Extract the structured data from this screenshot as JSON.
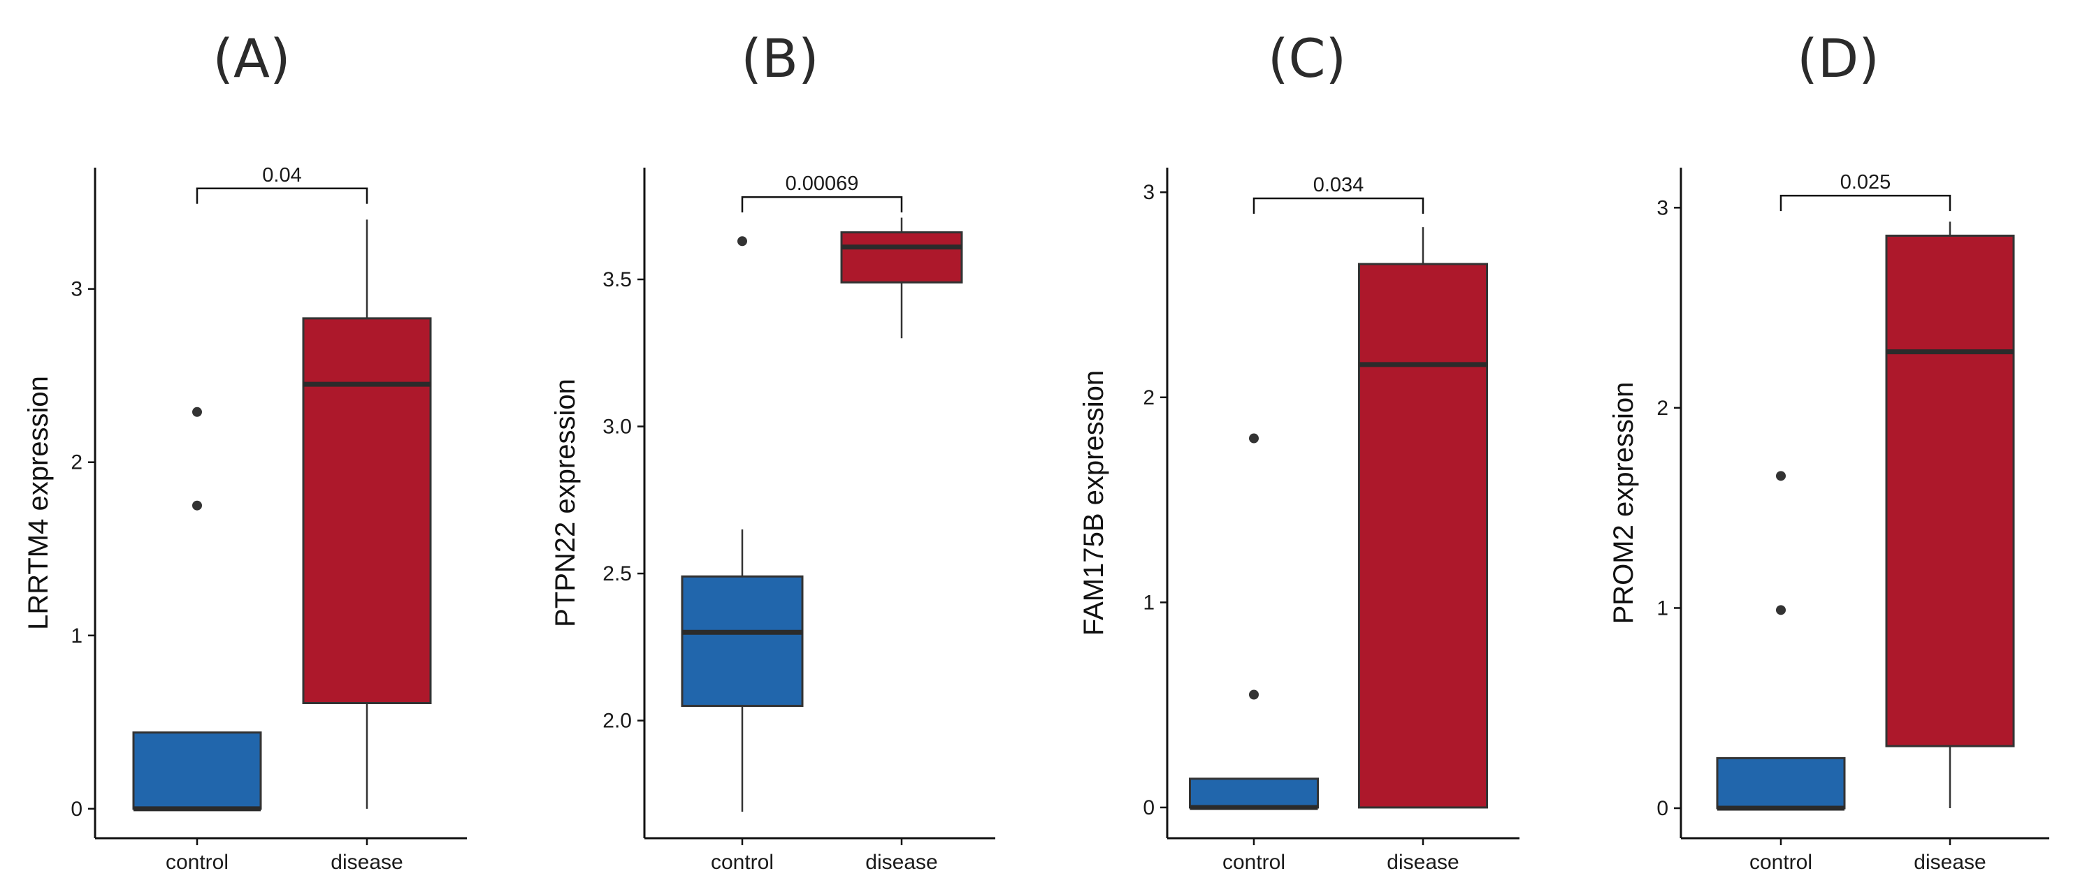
{
  "colors": {
    "control": "#2166ac",
    "disease": "#ad182b"
  },
  "chart_data": [
    {
      "type": "box",
      "panel": "(A)",
      "ylabel": "LRRTM4 expression",
      "categories": [
        "control",
        "disease"
      ],
      "ylim": [
        -0.17,
        3.7
      ],
      "yticks": [
        0,
        1,
        2,
        3
      ],
      "ytick_labels": [
        "0",
        "1",
        "2",
        "3"
      ],
      "boxes": [
        {
          "group": "control",
          "whisker_low": 0,
          "q1": 0,
          "median": 0,
          "q3": 0.44,
          "whisker_high": 0.44,
          "outliers": [
            1.75,
            2.29
          ]
        },
        {
          "group": "disease",
          "whisker_low": 0,
          "q1": 0.61,
          "median": 2.45,
          "q3": 2.83,
          "whisker_high": 3.4,
          "outliers": []
        }
      ],
      "comparison": {
        "label": "0.04",
        "y": 3.58
      }
    },
    {
      "type": "box",
      "panel": "(B)",
      "ylabel": "PTPN22 expression",
      "categories": [
        "control",
        "disease"
      ],
      "ylim": [
        1.6,
        3.88
      ],
      "yticks": [
        2.0,
        2.5,
        3.0,
        3.5
      ],
      "ytick_labels": [
        "2.0",
        "2.5",
        "3.0",
        "3.5"
      ],
      "boxes": [
        {
          "group": "control",
          "whisker_low": 1.69,
          "q1": 2.05,
          "median": 2.3,
          "q3": 2.49,
          "whisker_high": 2.65,
          "outliers": [
            3.63
          ]
        },
        {
          "group": "disease",
          "whisker_low": 3.3,
          "q1": 3.49,
          "median": 3.61,
          "q3": 3.66,
          "whisker_high": 3.71,
          "outliers": []
        }
      ],
      "comparison": {
        "label": "0.00069",
        "y": 3.78
      }
    },
    {
      "type": "box",
      "panel": "(C)",
      "ylabel": "FAM175B expression",
      "categories": [
        "control",
        "disease"
      ],
      "ylim": [
        -0.15,
        3.12
      ],
      "yticks": [
        0,
        1,
        2,
        3
      ],
      "ytick_labels": [
        "0",
        "1",
        "2",
        "3"
      ],
      "boxes": [
        {
          "group": "control",
          "whisker_low": 0,
          "q1": 0,
          "median": 0,
          "q3": 0.14,
          "whisker_high": 0.14,
          "outliers": [
            0.55,
            1.8
          ]
        },
        {
          "group": "disease",
          "whisker_low": 0,
          "q1": 0,
          "median": 2.16,
          "q3": 2.65,
          "whisker_high": 2.83,
          "outliers": []
        }
      ],
      "comparison": {
        "label": "0.034",
        "y": 2.97
      }
    },
    {
      "type": "box",
      "panel": "(D)",
      "ylabel": "PROM2 expression",
      "categories": [
        "control",
        "disease"
      ],
      "ylim": [
        -0.15,
        3.2
      ],
      "yticks": [
        0,
        1,
        2,
        3
      ],
      "ytick_labels": [
        "0",
        "1",
        "2",
        "3"
      ],
      "boxes": [
        {
          "group": "control",
          "whisker_low": 0,
          "q1": 0,
          "median": 0,
          "q3": 0.25,
          "whisker_high": 0.25,
          "outliers": [
            0.99,
            1.66
          ]
        },
        {
          "group": "disease",
          "whisker_low": 0,
          "q1": 0.31,
          "median": 2.28,
          "q3": 2.86,
          "whisker_high": 2.93,
          "outliers": []
        }
      ],
      "comparison": {
        "label": "0.025",
        "y": 3.06
      }
    }
  ]
}
